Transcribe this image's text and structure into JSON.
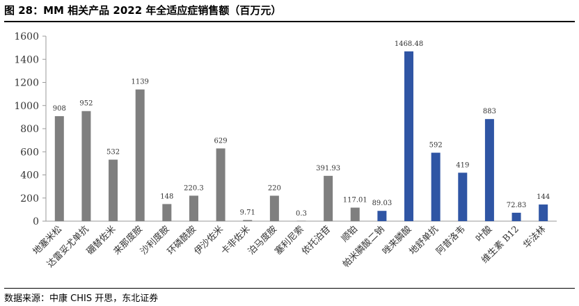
{
  "figure": {
    "title": "图 28：MM 相关产品 2022 年全适应症销售额（百万元）",
    "source": "数据来源：中康 CHIS 开思，东北证券"
  },
  "chart_data": {
    "type": "bar",
    "title": "MM 相关产品 2022 年全适应症销售额（百万元）",
    "xlabel": "",
    "ylabel": "",
    "ylim": [
      0,
      1600
    ],
    "yticks": [
      0,
      200,
      400,
      600,
      800,
      1000,
      1200,
      1400,
      1600
    ],
    "grid": false,
    "legend": "none",
    "colors": {
      "gray": "#7f7f7f",
      "blue": "#2f55a4"
    },
    "categories": [
      "地塞米松",
      "达雷妥尤单抗",
      "硼替佐米",
      "来那度胺",
      "沙利度胺",
      "环磷酰胺",
      "伊沙佐米",
      "卡非佐米",
      "泊马度胺",
      "塞利尼索",
      "依托泊苷",
      "顺铂",
      "帕米膦酸二钠",
      "唑来膦酸",
      "地舒单抗",
      "阿昔洛韦",
      "叶酸",
      "维生素 B12",
      "华法林"
    ],
    "values": [
      908,
      952,
      532,
      1139,
      148,
      220.3,
      629,
      9.71,
      220,
      0.3,
      391.93,
      117.01,
      89.03,
      1468.48,
      592,
      419,
      883,
      72.83,
      144
    ],
    "labels": [
      "908",
      "952",
      "532",
      "1139",
      "148",
      "220.3",
      "629",
      "9.71",
      "220",
      "0.3",
      "391.93",
      "117.01",
      "89.03",
      "1468.48",
      "592",
      "419",
      "883",
      "72.83",
      "144"
    ],
    "bar_colors": [
      "gray",
      "gray",
      "gray",
      "gray",
      "gray",
      "gray",
      "gray",
      "gray",
      "gray",
      "gray",
      "gray",
      "gray",
      "blue",
      "blue",
      "blue",
      "blue",
      "blue",
      "blue",
      "blue"
    ]
  }
}
